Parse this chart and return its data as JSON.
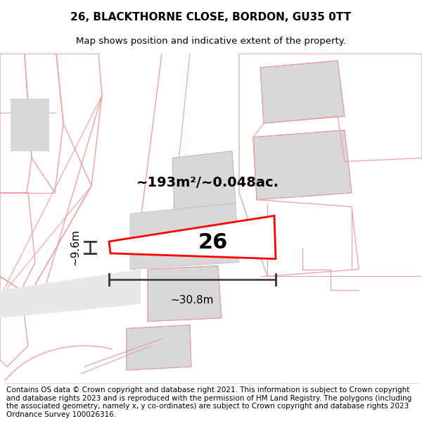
{
  "title": "26, BLACKTHORNE CLOSE, BORDON, GU35 0TT",
  "subtitle": "Map shows position and indicative extent of the property.",
  "footer": "Contains OS data © Crown copyright and database right 2021. This information is subject to Crown copyright and database rights 2023 and is reproduced with the permission of HM Land Registry. The polygons (including the associated geometry, namely x, y co-ordinates) are subject to Crown copyright and database rights 2023 Ordnance Survey 100026316.",
  "area_label": "~193m²/~0.048ac.",
  "number_label": "26",
  "width_label": "~30.8m",
  "height_label": "~9.6m",
  "bg_color": "#ffffff",
  "map_bg": "#ffffff",
  "plot_color": "#ff0000",
  "gray_fill": "#d8d8d8",
  "line_color": "#f0a0a0",
  "dim_color": "#333333",
  "title_fontsize": 11,
  "subtitle_fontsize": 9.5,
  "footer_fontsize": 7.5,
  "area_fontsize": 14,
  "number_fontsize": 22,
  "measure_fontsize": 11
}
